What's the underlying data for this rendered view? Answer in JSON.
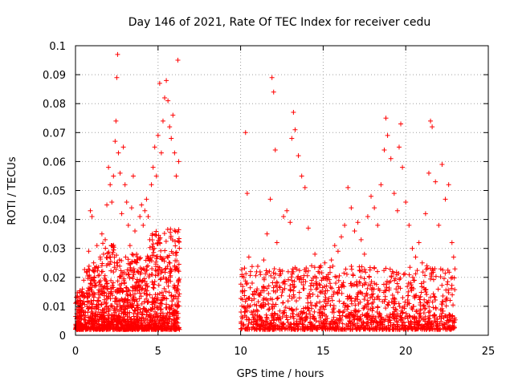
{
  "chart_data": {
    "type": "scatter",
    "title": "Day 146 of 2021, Rate Of TEC Index for receiver cedu",
    "xlabel": "GPS time / hours",
    "ylabel": "ROTI / TECUs",
    "xlim": [
      0,
      25
    ],
    "ylim": [
      0,
      0.1
    ],
    "xticks": [
      0,
      5,
      10,
      15,
      20,
      25
    ],
    "xtick_labels": [
      "0",
      "5",
      "10",
      "15",
      "20",
      "25"
    ],
    "yticks": [
      0,
      0.01,
      0.02,
      0.03,
      0.04,
      0.05,
      0.06,
      0.07,
      0.08,
      0.09,
      0.1
    ],
    "ytick_labels": [
      "0",
      "0.01",
      "0.02",
      "0.03",
      "0.04",
      "0.05",
      "0.06",
      "0.07",
      "0.08",
      "0.09",
      "0.1"
    ],
    "grid": true,
    "marker": "+",
    "marker_color": "#ff0000",
    "series": [
      {
        "name": "ROTI",
        "points": [
          [
            0.1,
            0.006
          ],
          [
            0.2,
            0.009
          ],
          [
            0.3,
            0.012
          ],
          [
            0.4,
            0.015
          ],
          [
            0.5,
            0.019
          ],
          [
            0.6,
            0.008
          ],
          [
            0.7,
            0.022
          ],
          [
            0.8,
            0.029
          ],
          [
            0.9,
            0.043
          ],
          [
            1.0,
            0.041
          ],
          [
            1.1,
            0.025
          ],
          [
            1.2,
            0.018
          ],
          [
            1.3,
            0.031
          ],
          [
            1.4,
            0.012
          ],
          [
            1.5,
            0.027
          ],
          [
            1.6,
            0.035
          ],
          [
            1.7,
            0.028
          ],
          [
            1.8,
            0.033
          ],
          [
            1.9,
            0.045
          ],
          [
            2.0,
            0.058
          ],
          [
            2.1,
            0.052
          ],
          [
            2.2,
            0.046
          ],
          [
            2.3,
            0.055
          ],
          [
            2.4,
            0.067
          ],
          [
            2.45,
            0.074
          ],
          [
            2.5,
            0.089
          ],
          [
            2.55,
            0.097
          ],
          [
            2.6,
            0.063
          ],
          [
            2.7,
            0.056
          ],
          [
            2.8,
            0.042
          ],
          [
            2.9,
            0.065
          ],
          [
            3.0,
            0.052
          ],
          [
            3.1,
            0.046
          ],
          [
            3.2,
            0.038
          ],
          [
            3.3,
            0.031
          ],
          [
            3.4,
            0.044
          ],
          [
            3.5,
            0.055
          ],
          [
            3.6,
            0.036
          ],
          [
            3.7,
            0.028
          ],
          [
            3.8,
            0.022
          ],
          [
            3.9,
            0.041
          ],
          [
            4.0,
            0.045
          ],
          [
            4.1,
            0.038
          ],
          [
            4.2,
            0.043
          ],
          [
            4.3,
            0.047
          ],
          [
            4.4,
            0.041
          ],
          [
            4.5,
            0.033
          ],
          [
            4.6,
            0.052
          ],
          [
            4.7,
            0.058
          ],
          [
            4.8,
            0.065
          ],
          [
            4.9,
            0.055
          ],
          [
            5.0,
            0.069
          ],
          [
            5.1,
            0.087
          ],
          [
            5.2,
            0.063
          ],
          [
            5.3,
            0.074
          ],
          [
            5.4,
            0.082
          ],
          [
            5.5,
            0.088
          ],
          [
            5.6,
            0.081
          ],
          [
            5.7,
            0.072
          ],
          [
            5.8,
            0.068
          ],
          [
            5.9,
            0.076
          ],
          [
            6.0,
            0.063
          ],
          [
            6.1,
            0.055
          ],
          [
            6.2,
            0.095
          ],
          [
            6.25,
            0.06
          ],
          [
            10.1,
            0.015
          ],
          [
            10.2,
            0.02
          ],
          [
            10.3,
            0.07
          ],
          [
            10.4,
            0.049
          ],
          [
            10.5,
            0.027
          ],
          [
            10.6,
            0.022
          ],
          [
            10.7,
            0.018
          ],
          [
            10.8,
            0.014
          ],
          [
            11.0,
            0.016
          ],
          [
            11.2,
            0.021
          ],
          [
            11.4,
            0.026
          ],
          [
            11.6,
            0.035
          ],
          [
            11.8,
            0.047
          ],
          [
            11.9,
            0.089
          ],
          [
            12.0,
            0.084
          ],
          [
            12.1,
            0.064
          ],
          [
            12.2,
            0.032
          ],
          [
            12.4,
            0.022
          ],
          [
            12.6,
            0.041
          ],
          [
            12.8,
            0.043
          ],
          [
            13.0,
            0.039
          ],
          [
            13.1,
            0.068
          ],
          [
            13.2,
            0.077
          ],
          [
            13.3,
            0.071
          ],
          [
            13.5,
            0.062
          ],
          [
            13.7,
            0.055
          ],
          [
            13.9,
            0.051
          ],
          [
            14.1,
            0.037
          ],
          [
            14.3,
            0.024
          ],
          [
            14.5,
            0.028
          ],
          [
            14.7,
            0.022
          ],
          [
            14.9,
            0.019
          ],
          [
            15.1,
            0.025
          ],
          [
            15.3,
            0.021
          ],
          [
            15.5,
            0.026
          ],
          [
            15.7,
            0.031
          ],
          [
            15.9,
            0.029
          ],
          [
            16.1,
            0.034
          ],
          [
            16.3,
            0.038
          ],
          [
            16.5,
            0.051
          ],
          [
            16.7,
            0.044
          ],
          [
            16.9,
            0.036
          ],
          [
            17.1,
            0.039
          ],
          [
            17.3,
            0.033
          ],
          [
            17.5,
            0.028
          ],
          [
            17.7,
            0.041
          ],
          [
            17.9,
            0.048
          ],
          [
            18.1,
            0.044
          ],
          [
            18.3,
            0.038
          ],
          [
            18.5,
            0.052
          ],
          [
            18.7,
            0.064
          ],
          [
            18.8,
            0.075
          ],
          [
            18.9,
            0.069
          ],
          [
            19.1,
            0.061
          ],
          [
            19.3,
            0.049
          ],
          [
            19.5,
            0.043
          ],
          [
            19.6,
            0.065
          ],
          [
            19.7,
            0.073
          ],
          [
            19.8,
            0.058
          ],
          [
            20.0,
            0.046
          ],
          [
            20.2,
            0.038
          ],
          [
            20.4,
            0.03
          ],
          [
            20.6,
            0.027
          ],
          [
            20.8,
            0.032
          ],
          [
            21.0,
            0.025
          ],
          [
            21.2,
            0.042
          ],
          [
            21.4,
            0.056
          ],
          [
            21.5,
            0.074
          ],
          [
            21.6,
            0.072
          ],
          [
            21.8,
            0.053
          ],
          [
            22.0,
            0.038
          ],
          [
            22.2,
            0.059
          ],
          [
            22.4,
            0.047
          ],
          [
            22.6,
            0.052
          ],
          [
            22.8,
            0.032
          ],
          [
            22.9,
            0.027
          ]
        ]
      }
    ]
  }
}
